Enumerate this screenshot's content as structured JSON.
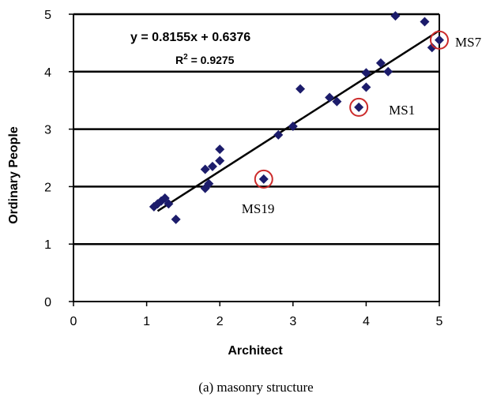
{
  "chart_data": {
    "type": "scatter",
    "title": "",
    "caption": "(a) masonry structure",
    "xlabel": "Architect",
    "ylabel": "Ordinary People",
    "xlim": [
      0,
      5
    ],
    "ylim": [
      0,
      5
    ],
    "xticks": [
      "0",
      "1",
      "2",
      "3",
      "4",
      "5"
    ],
    "yticks": [
      "0",
      "1",
      "2",
      "3",
      "4",
      "5"
    ],
    "grid": "horizontal",
    "marker_color": "#1c1c6b",
    "highlight_color": "#cc2b2b",
    "equation": "y = 0.8155x + 0.6376",
    "r_squared_label": "R",
    "r_squared_sup": "2",
    "r_squared_value": " = 0.9275",
    "trendline": {
      "slope": 0.8155,
      "intercept": 0.6376,
      "x_range": [
        1.15,
        5.0
      ]
    },
    "points": [
      {
        "x": 1.1,
        "y": 1.65
      },
      {
        "x": 1.15,
        "y": 1.7
      },
      {
        "x": 1.2,
        "y": 1.75
      },
      {
        "x": 1.25,
        "y": 1.8
      },
      {
        "x": 1.3,
        "y": 1.7
      },
      {
        "x": 1.4,
        "y": 1.43
      },
      {
        "x": 1.8,
        "y": 1.97
      },
      {
        "x": 1.85,
        "y": 2.05
      },
      {
        "x": 1.8,
        "y": 2.3
      },
      {
        "x": 1.9,
        "y": 2.35
      },
      {
        "x": 2.0,
        "y": 2.45
      },
      {
        "x": 2.0,
        "y": 2.65
      },
      {
        "x": 2.6,
        "y": 2.13
      },
      {
        "x": 2.8,
        "y": 2.9
      },
      {
        "x": 3.0,
        "y": 3.05
      },
      {
        "x": 3.1,
        "y": 3.7
      },
      {
        "x": 3.5,
        "y": 3.55
      },
      {
        "x": 3.6,
        "y": 3.48
      },
      {
        "x": 3.9,
        "y": 3.38
      },
      {
        "x": 4.0,
        "y": 3.73
      },
      {
        "x": 4.0,
        "y": 3.98
      },
      {
        "x": 4.2,
        "y": 4.15
      },
      {
        "x": 4.3,
        "y": 4.0
      },
      {
        "x": 4.4,
        "y": 4.97
      },
      {
        "x": 4.8,
        "y": 4.87
      },
      {
        "x": 4.9,
        "y": 4.42
      },
      {
        "x": 5.0,
        "y": 4.55
      }
    ],
    "highlights": [
      {
        "label": "MS7",
        "x": 5.0,
        "y": 4.55
      },
      {
        "label": "MS1",
        "x": 3.9,
        "y": 3.38
      },
      {
        "label": "MS19",
        "x": 2.6,
        "y": 2.13
      }
    ]
  }
}
